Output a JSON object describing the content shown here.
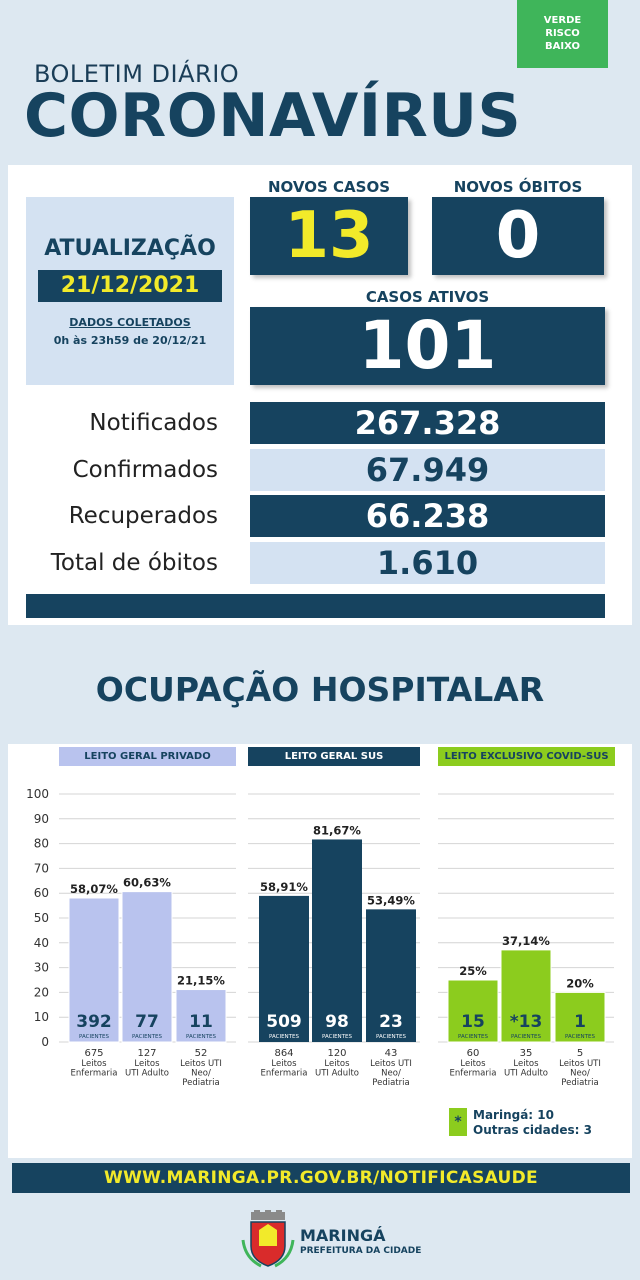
{
  "header": {
    "risk_badge": [
      "VERDE",
      "RISCO",
      "BAIXO"
    ],
    "subtitle": "BOLETIM DIÁRIO",
    "title": "CORONAVÍRUS"
  },
  "update": {
    "label": "ATUALIZAÇÃO",
    "date": "21/12/2021",
    "data_label": "DADOS COLETADOS",
    "data_range": "0h às 23h59 de 20/12/21"
  },
  "kpis": {
    "novos_casos_label": "NOVOS CASOS",
    "novos_casos_value": "13",
    "novos_obitos_label": "NOVOS ÓBITOS",
    "novos_obitos_value": "0",
    "casos_ativos_label": "CASOS ATIVOS",
    "casos_ativos_value": "101"
  },
  "stats": [
    {
      "label": "Notificados",
      "value": "267.328"
    },
    {
      "label": "Confirmados",
      "value": "67.949"
    },
    {
      "label": "Recuperados",
      "value": "66.238"
    },
    {
      "label": "Total de óbitos",
      "value": "1.610"
    }
  ],
  "hospital_title": "OCUPAÇÃO HOSPITALAR",
  "colors": {
    "navy": "#16435f",
    "lavender": "#b9c3ee",
    "green": "#8ccc1e",
    "yellow": "#f2ea2a"
  },
  "chart_data": {
    "type": "bar",
    "ylim": [
      0,
      100
    ],
    "yticks": [
      0,
      10,
      20,
      30,
      40,
      50,
      60,
      70,
      80,
      90,
      100
    ],
    "grid": true,
    "groups": [
      {
        "name": "LEITO GERAL PRIVADO",
        "color": "#b9c3ee",
        "bars": [
          {
            "percent": 58.07,
            "percent_label": "58,07%",
            "patients": "392",
            "beds": "675",
            "category": [
              "Leitos",
              "Enfermaria"
            ]
          },
          {
            "percent": 60.63,
            "percent_label": "60,63%",
            "patients": "77",
            "beds": "127",
            "category": [
              "Leitos",
              "UTI Adulto"
            ]
          },
          {
            "percent": 21.15,
            "percent_label": "21,15%",
            "patients": "11",
            "beds": "52",
            "category": [
              "Leitos UTI",
              "Neo/",
              "Pediatria"
            ]
          }
        ]
      },
      {
        "name": "LEITO GERAL SUS",
        "color": "#16435f",
        "bars": [
          {
            "percent": 58.91,
            "percent_label": "58,91%",
            "patients": "509",
            "beds": "864",
            "category": [
              "Leitos",
              "Enfermaria"
            ]
          },
          {
            "percent": 81.67,
            "percent_label": "81,67%",
            "patients": "98",
            "beds": "120",
            "category": [
              "Leitos",
              "UTI Adulto"
            ]
          },
          {
            "percent": 53.49,
            "percent_label": "53,49%",
            "patients": "23",
            "beds": "43",
            "category": [
              "Leitos UTI",
              "Neo/",
              "Pediatria"
            ]
          }
        ]
      },
      {
        "name": "LEITO EXCLUSIVO COVID-SUS",
        "color": "#8ccc1e",
        "bars": [
          {
            "percent": 25,
            "percent_label": "25%",
            "patients": "15",
            "beds": "60",
            "category": [
              "Leitos",
              "Enfermaria"
            ]
          },
          {
            "percent": 37.14,
            "percent_label": "37,14%",
            "patients": "*13",
            "beds": "35",
            "category": [
              "Leitos",
              "UTI Adulto"
            ]
          },
          {
            "percent": 20,
            "percent_label": "20%",
            "patients": "1",
            "beds": "5",
            "category": [
              "Leitos UTI",
              "Neo/",
              "Pediatria"
            ]
          }
        ]
      }
    ],
    "patients_label": "PACIENTES"
  },
  "legend": {
    "symbol": "*",
    "line1": "Maringá: 10",
    "line2": "Outras cidades: 3"
  },
  "url": "WWW.MARINGA.PR.GOV.BR/NOTIFICASAUDE",
  "footer": {
    "name": "MARINGÁ",
    "sub": "PREFEITURA DA CIDADE"
  }
}
